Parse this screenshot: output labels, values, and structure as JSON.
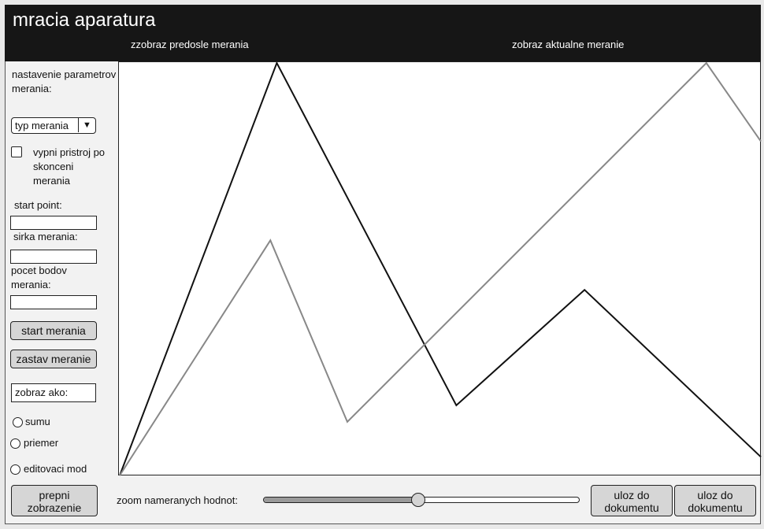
{
  "app": {
    "title": "mracia aparatura"
  },
  "header": {
    "prev_link": "zzobraz predosle merania",
    "current_link": "zobraz aktualne meranie"
  },
  "sidebar": {
    "settings_label": "nastavenie parametrov merania:",
    "type_select": {
      "value": "typ merania"
    },
    "turn_off_checkbox": {
      "checked": false,
      "label": "vypni pristroj po skonceni merania"
    },
    "start_point_label": "start point:",
    "start_point_value": "",
    "width_label": "sirka merania:",
    "width_value": "",
    "points_label": "pocet bodov merania:",
    "points_value": "",
    "start_button": "start merania",
    "stop_button": "zastav meranie",
    "display_as": "zobraz ako:",
    "radios": [
      {
        "label": "sumu",
        "selected": false
      },
      {
        "label": "priemer",
        "selected": false
      },
      {
        "label": "editovaci mod",
        "selected": false
      }
    ]
  },
  "footer": {
    "switch_button": "prepni zobrazenie",
    "zoom_label": "zoom nameranych hodnot:",
    "zoom_value_pct": 49,
    "save_button_1": "uloz do dokumentu",
    "save_button_2": "uloz do dokumentu"
  },
  "colors": {
    "series_dark": "#111111",
    "series_gray": "#888888"
  },
  "chart_data": {
    "type": "line",
    "title": "",
    "xlabel": "",
    "ylabel": "",
    "xlim": [
      0,
      100
    ],
    "ylim": [
      0,
      100
    ],
    "grid": false,
    "series": [
      {
        "name": "predosle meranie",
        "color": "#111111",
        "x": [
          0,
          24.5,
          52.5,
          72.5,
          100
        ],
        "y": [
          0,
          100,
          17,
          45,
          4.5
        ]
      },
      {
        "name": "aktualne meranie",
        "color": "#888888",
        "x": [
          0,
          23.5,
          35.5,
          91.5,
          100
        ],
        "y": [
          0,
          57,
          13,
          100,
          81
        ]
      }
    ]
  }
}
